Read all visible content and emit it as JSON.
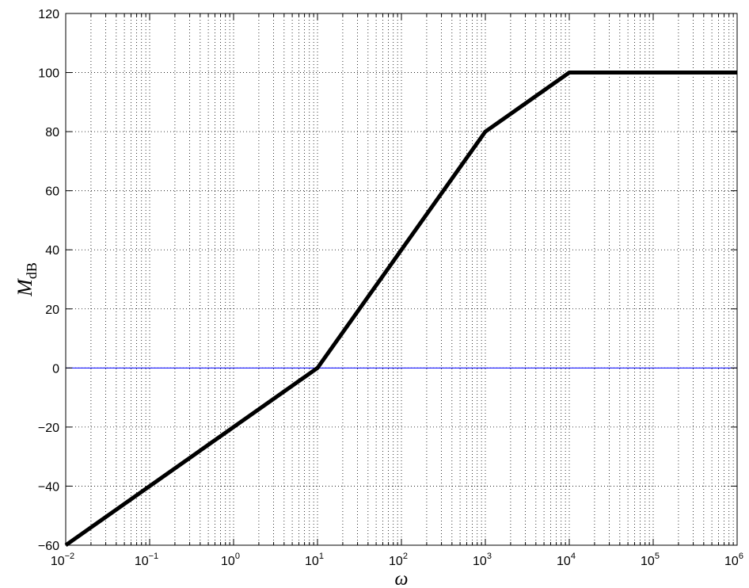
{
  "chart_data": {
    "type": "line",
    "xscale": "log",
    "xlim": [
      0.01,
      1000000
    ],
    "ylim": [
      -60,
      120
    ],
    "xlabel": "ω",
    "ylabel": "M",
    "ylabel_subscript": "dB",
    "x_ticks": [
      {
        "base": "10",
        "exp": "−2",
        "value": 0.01
      },
      {
        "base": "10",
        "exp": "−1",
        "value": 0.1
      },
      {
        "base": "10",
        "exp": "0",
        "value": 1
      },
      {
        "base": "10",
        "exp": "1",
        "value": 10
      },
      {
        "base": "10",
        "exp": "2",
        "value": 100
      },
      {
        "base": "10",
        "exp": "3",
        "value": 1000
      },
      {
        "base": "10",
        "exp": "4",
        "value": 10000
      },
      {
        "base": "10",
        "exp": "5",
        "value": 100000
      },
      {
        "base": "10",
        "exp": "6",
        "value": 1000000
      }
    ],
    "y_ticks": [
      {
        "label": "120",
        "value": 120
      },
      {
        "label": "100",
        "value": 100
      },
      {
        "label": "80",
        "value": 80
      },
      {
        "label": "60",
        "value": 60
      },
      {
        "label": "40",
        "value": 40
      },
      {
        "label": "20",
        "value": 20
      },
      {
        "label": "0",
        "value": 0
      },
      {
        "label": "−20",
        "value": -20
      },
      {
        "label": "−40",
        "value": -40
      },
      {
        "label": "−60",
        "value": -60
      }
    ],
    "grid": true,
    "series": [
      {
        "color": "#000000",
        "x": [
          0.01,
          10,
          1000,
          10000,
          1000000
        ],
        "y": [
          -60,
          0,
          80,
          100,
          100
        ]
      },
      {
        "color": "#0000ff",
        "x": [
          0.01,
          1000000
        ],
        "y": [
          0,
          0
        ]
      }
    ]
  }
}
